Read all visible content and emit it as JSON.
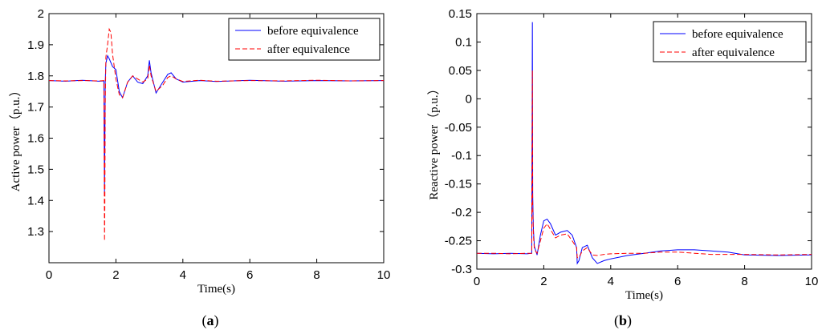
{
  "chart_data": [
    {
      "type": "line",
      "caption_letter": "a",
      "xlabel": "Time(s)",
      "ylabel": "Active power（p.u.）",
      "xlim": [
        0,
        10
      ],
      "ylim": [
        1.2,
        2.0
      ],
      "xticks": [
        "0",
        "2",
        "4",
        "6",
        "8",
        "10"
      ],
      "yticks": [
        "1.3",
        "1.4",
        "1.5",
        "1.6",
        "1.7",
        "1.8",
        "1.9",
        "2"
      ],
      "grid": false,
      "legend_position": "top-right",
      "series": [
        {
          "name": "before equivalence",
          "color": "#0000ff",
          "style": "solid",
          "x": [
            0,
            0.5,
            1.0,
            1.5,
            1.64,
            1.66,
            1.67,
            1.68,
            1.7,
            1.75,
            1.8,
            1.9,
            2.0,
            2.1,
            2.2,
            2.35,
            2.5,
            2.65,
            2.8,
            2.95,
            3.0,
            3.05,
            3.2,
            3.4,
            3.55,
            3.65,
            3.8,
            4.0,
            4.5,
            5.0,
            6.0,
            7.0,
            8.0,
            9.0,
            10.0
          ],
          "y": [
            1.785,
            1.783,
            1.786,
            1.783,
            1.784,
            1.42,
            1.58,
            1.78,
            1.84,
            1.865,
            1.855,
            1.83,
            1.82,
            1.75,
            1.73,
            1.78,
            1.8,
            1.78,
            1.775,
            1.8,
            1.85,
            1.81,
            1.745,
            1.78,
            1.805,
            1.81,
            1.79,
            1.78,
            1.785,
            1.782,
            1.786,
            1.783,
            1.785,
            1.784,
            1.785
          ]
        },
        {
          "name": "after equivalence",
          "color": "#ff0000",
          "style": "dashed",
          "x": [
            0,
            0.5,
            1.0,
            1.5,
            1.64,
            1.66,
            1.67,
            1.68,
            1.7,
            1.75,
            1.8,
            1.85,
            1.9,
            2.0,
            2.1,
            2.2,
            2.35,
            2.5,
            2.65,
            2.8,
            2.95,
            3.0,
            3.05,
            3.2,
            3.4,
            3.55,
            3.65,
            3.8,
            4.0,
            4.5,
            5.0,
            6.0,
            7.0,
            8.0,
            9.0,
            10.0
          ],
          "y": [
            1.785,
            1.784,
            1.785,
            1.784,
            1.785,
            1.27,
            1.38,
            1.7,
            1.86,
            1.9,
            1.95,
            1.94,
            1.87,
            1.79,
            1.74,
            1.73,
            1.78,
            1.8,
            1.79,
            1.78,
            1.79,
            1.835,
            1.8,
            1.75,
            1.77,
            1.795,
            1.8,
            1.79,
            1.782,
            1.786,
            1.783,
            1.785,
            1.784,
            1.786,
            1.784,
            1.785
          ]
        }
      ]
    },
    {
      "type": "line",
      "caption_letter": "b",
      "xlabel": "Time(s)",
      "ylabel": "Reactive power（p.u.）",
      "xlim": [
        0,
        10
      ],
      "ylim": [
        -0.3,
        0.15
      ],
      "xticks": [
        "0",
        "2",
        "4",
        "6",
        "8",
        "10"
      ],
      "yticks": [
        "-0.3",
        "-0.25",
        "-0.2",
        "-0.15",
        "-0.1",
        "-0.05",
        "0",
        "0.05",
        "0.1",
        "0.15"
      ],
      "grid": false,
      "legend_position": "top-right",
      "series": [
        {
          "name": "before equivalence",
          "color": "#0000ff",
          "style": "solid",
          "x": [
            0,
            0.5,
            1.0,
            1.5,
            1.64,
            1.66,
            1.67,
            1.69,
            1.72,
            1.8,
            1.9,
            2.0,
            2.1,
            2.2,
            2.35,
            2.5,
            2.7,
            2.85,
            2.98,
            3.0,
            3.05,
            3.15,
            3.3,
            3.45,
            3.6,
            3.8,
            4.0,
            4.5,
            5.0,
            5.5,
            6.0,
            6.5,
            7.0,
            7.5,
            8.0,
            9.0,
            10.0
          ],
          "y": [
            -0.272,
            -0.273,
            -0.272,
            -0.273,
            -0.272,
            0.135,
            -0.17,
            -0.23,
            -0.26,
            -0.275,
            -0.24,
            -0.215,
            -0.212,
            -0.22,
            -0.24,
            -0.235,
            -0.232,
            -0.24,
            -0.262,
            -0.29,
            -0.285,
            -0.262,
            -0.258,
            -0.28,
            -0.29,
            -0.285,
            -0.282,
            -0.276,
            -0.272,
            -0.268,
            -0.266,
            -0.266,
            -0.268,
            -0.27,
            -0.275,
            -0.276,
            -0.275
          ]
        },
        {
          "name": "after equivalence",
          "color": "#ff0000",
          "style": "dashed",
          "x": [
            0,
            0.5,
            1.0,
            1.5,
            1.64,
            1.66,
            1.67,
            1.69,
            1.72,
            1.8,
            1.9,
            2.0,
            2.1,
            2.2,
            2.35,
            2.5,
            2.7,
            2.85,
            2.98,
            3.0,
            3.05,
            3.15,
            3.3,
            3.45,
            3.6,
            3.8,
            4.0,
            4.5,
            5.0,
            5.5,
            6.0,
            6.5,
            7.0,
            7.5,
            8.0,
            9.0,
            10.0
          ],
          "y": [
            -0.272,
            -0.272,
            -0.273,
            -0.272,
            -0.272,
            0.05,
            -0.19,
            -0.24,
            -0.265,
            -0.272,
            -0.25,
            -0.228,
            -0.22,
            -0.23,
            -0.245,
            -0.24,
            -0.238,
            -0.25,
            -0.262,
            -0.28,
            -0.28,
            -0.268,
            -0.262,
            -0.275,
            -0.276,
            -0.274,
            -0.273,
            -0.272,
            -0.272,
            -0.27,
            -0.27,
            -0.272,
            -0.274,
            -0.274,
            -0.274,
            -0.275,
            -0.274
          ]
        }
      ]
    }
  ]
}
